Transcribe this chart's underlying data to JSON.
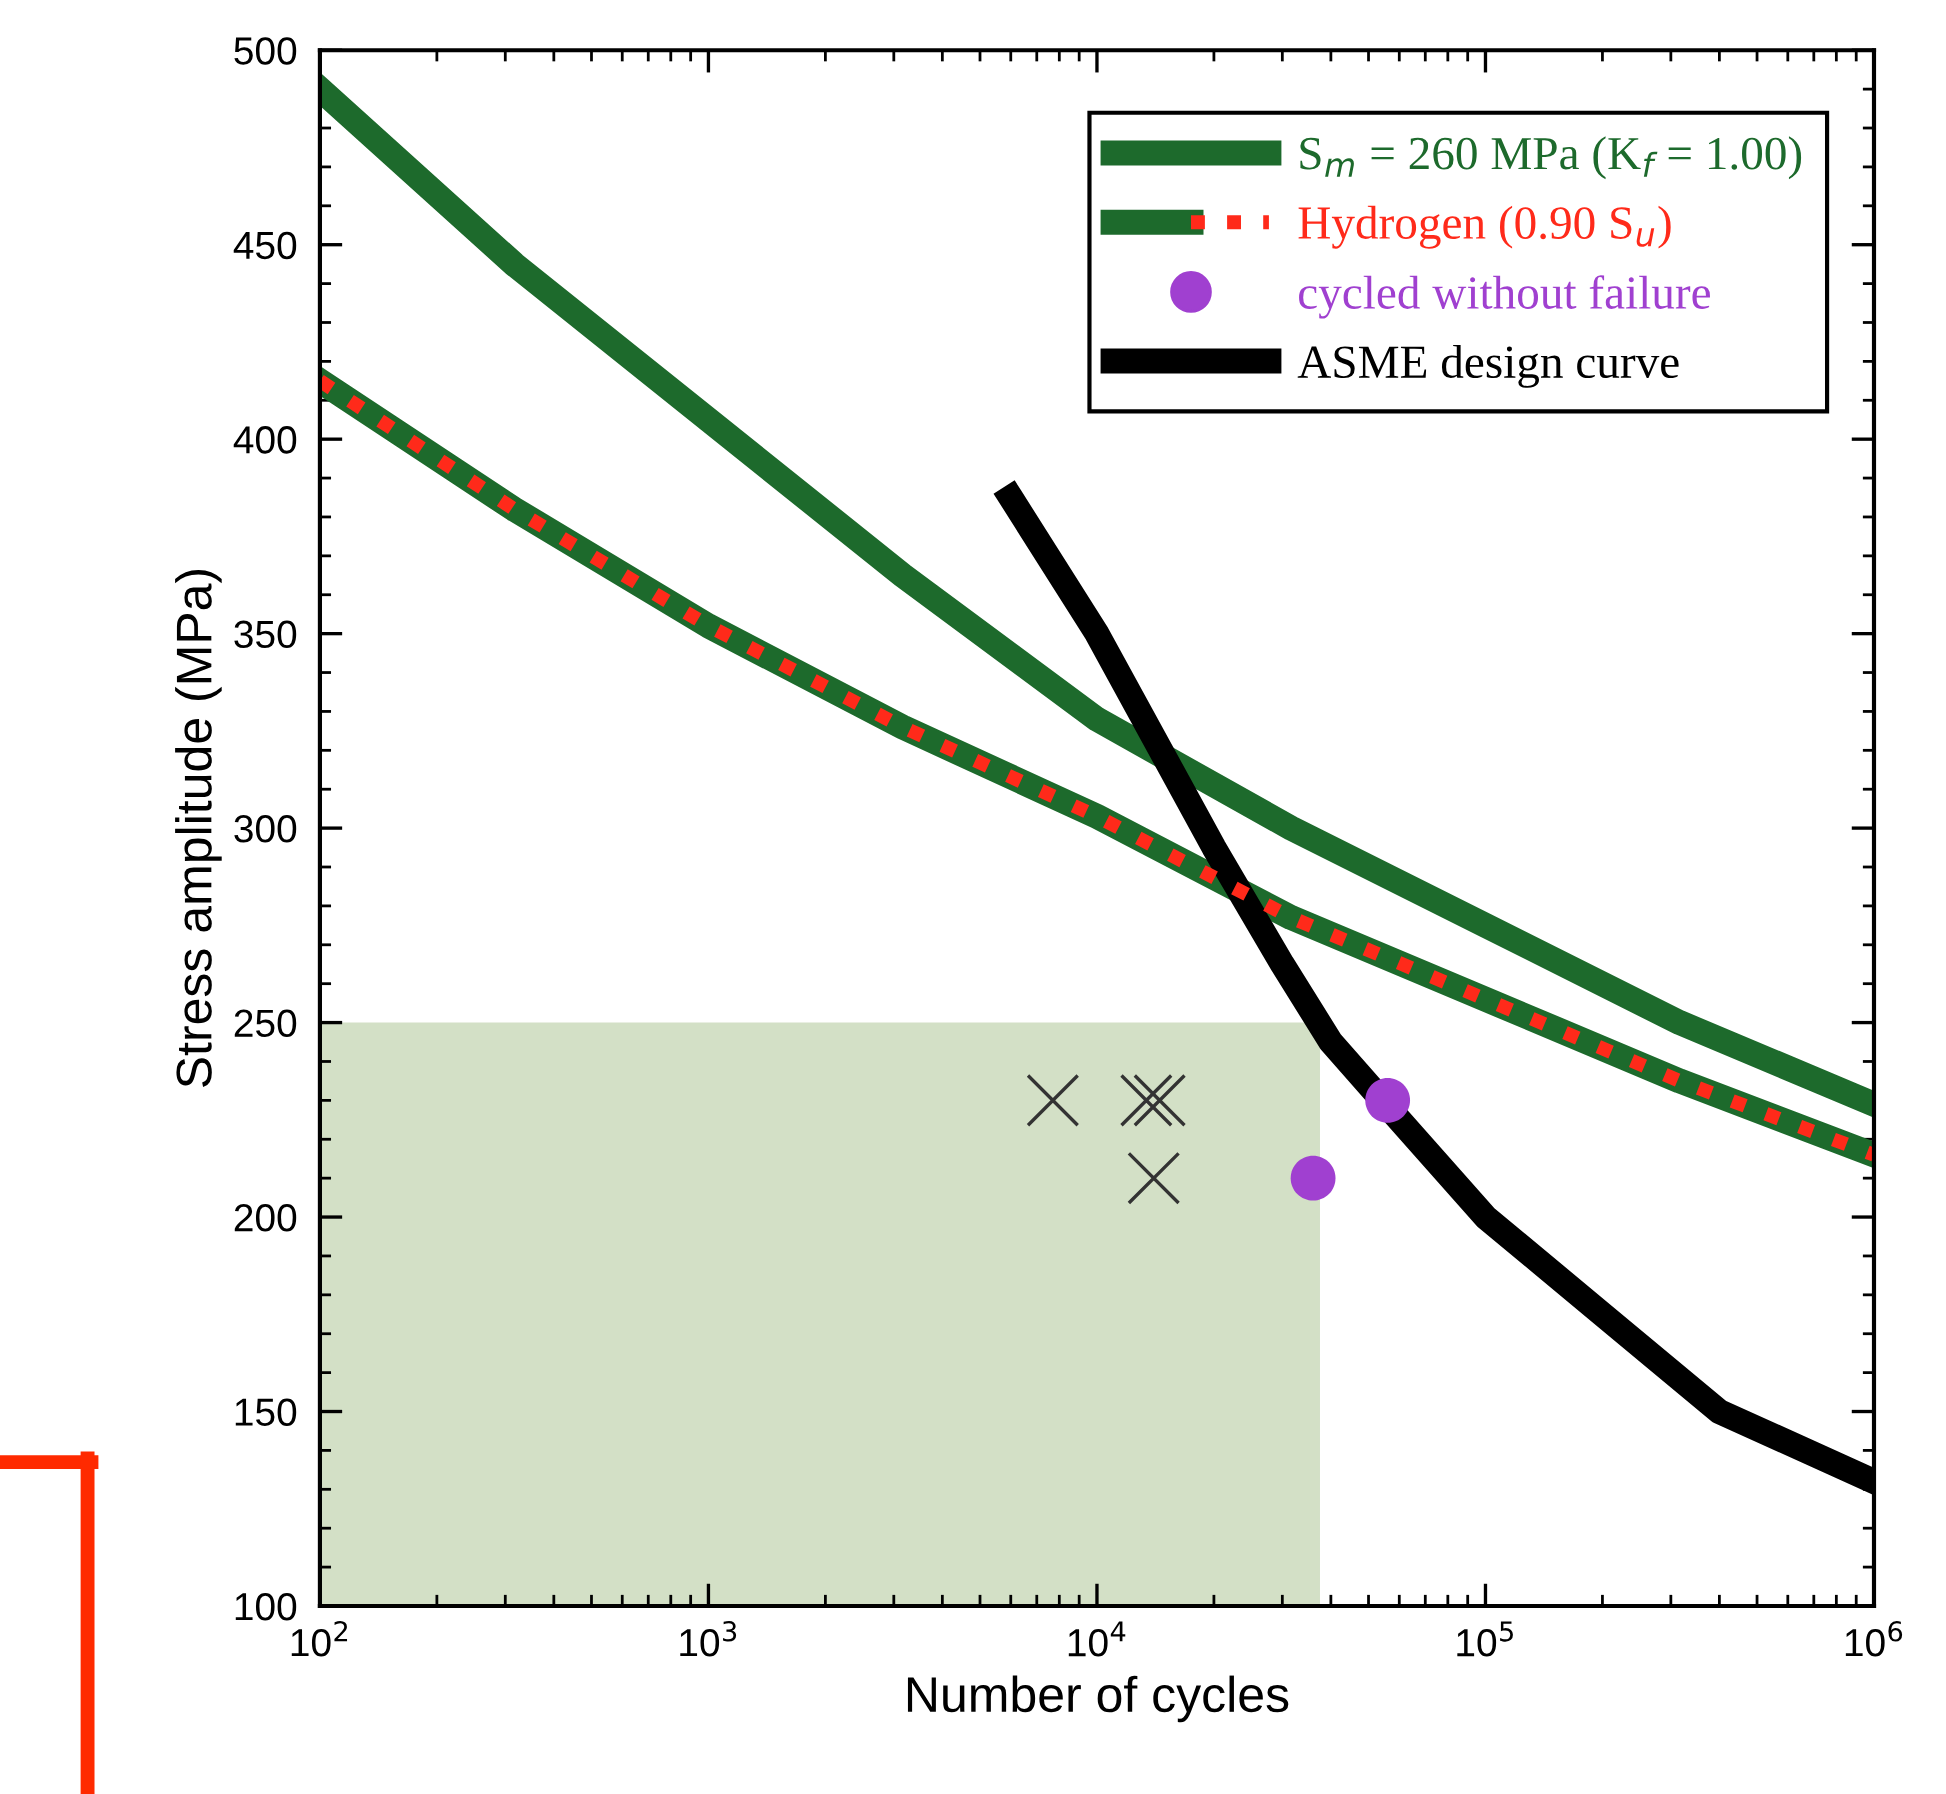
{
  "chart_data": {
    "type": "line",
    "xlabel": "Number of cycles",
    "ylabel": "Stress amplitude (MPa)",
    "log": "x",
    "xlim": [
      100,
      1000000
    ],
    "ylim": [
      100,
      500
    ],
    "xticks": [
      {
        "value": 100,
        "label": "10$^{2}$"
      },
      {
        "value": 1000,
        "label": "10$^{3}$"
      },
      {
        "value": 10000,
        "label": "10$^{4}$"
      },
      {
        "value": 100000,
        "label": "10$^{5}$"
      },
      {
        "value": 1000000,
        "label": "10$^{6}$"
      }
    ],
    "yticks": [
      100,
      150,
      200,
      250,
      300,
      350,
      400,
      450,
      500
    ],
    "grid": false,
    "legend": "top right",
    "series": [
      {
        "type": "area",
        "color": "#d3e0c6",
        "x": [
          100,
          37500
        ],
        "values": [
          250,
          250
        ]
      },
      {
        "name": "S$_{m}$ = 260 MPa (K$_{f}$ = 1.00)",
        "color": "#1d6a2c",
        "marker": "none",
        "line_style": "solid",
        "x": [
          100,
          316,
          1000,
          3160,
          10000,
          31600,
          100000,
          316000,
          1000000
        ],
        "values": [
          490,
          445,
          405,
          365,
          328,
          300,
          275,
          250,
          229
        ]
      },
      {
        "color": "#1d6a2c",
        "marker": "none",
        "line_style": "solid",
        "x": [
          100,
          316,
          1000,
          3160,
          10000,
          31600,
          100000,
          316000,
          1000000
        ],
        "values": [
          415,
          382,
          352,
          326,
          303,
          277,
          256,
          235,
          216
        ]
      },
      {
        "name": "Hydrogen (0.90 S$_{u}$)",
        "color": "#ff2a1a",
        "marker": "none",
        "line_style": "dotted",
        "x": [
          100,
          316,
          1000,
          3160,
          10000,
          31600,
          100000,
          316000,
          1000000
        ],
        "values": [
          415,
          382,
          352,
          326,
          303,
          277,
          256,
          235,
          216
        ]
      },
      {
        "name": "cycled without failure",
        "type": "scatter",
        "color": "#a040d0",
        "marker": "circle",
        "x": [
          36000,
          56000
        ],
        "values": [
          210,
          230
        ]
      },
      {
        "name": "ASME design curve",
        "color": "#000000",
        "marker": "none",
        "line_style": "solid",
        "x": [
          6000,
          10000,
          20000,
          30000,
          40000,
          60000,
          100000,
          200000,
          400000,
          1000000
        ],
        "values": [
          385,
          350,
          295,
          265,
          245,
          225,
          200,
          175,
          150,
          132
        ]
      },
      {
        "type": "scatter",
        "color": "#333333",
        "marker": "cross",
        "x": [
          7700,
          13400,
          14500,
          14000
        ],
        "values": [
          230,
          230,
          230,
          210
        ]
      }
    ]
  }
}
